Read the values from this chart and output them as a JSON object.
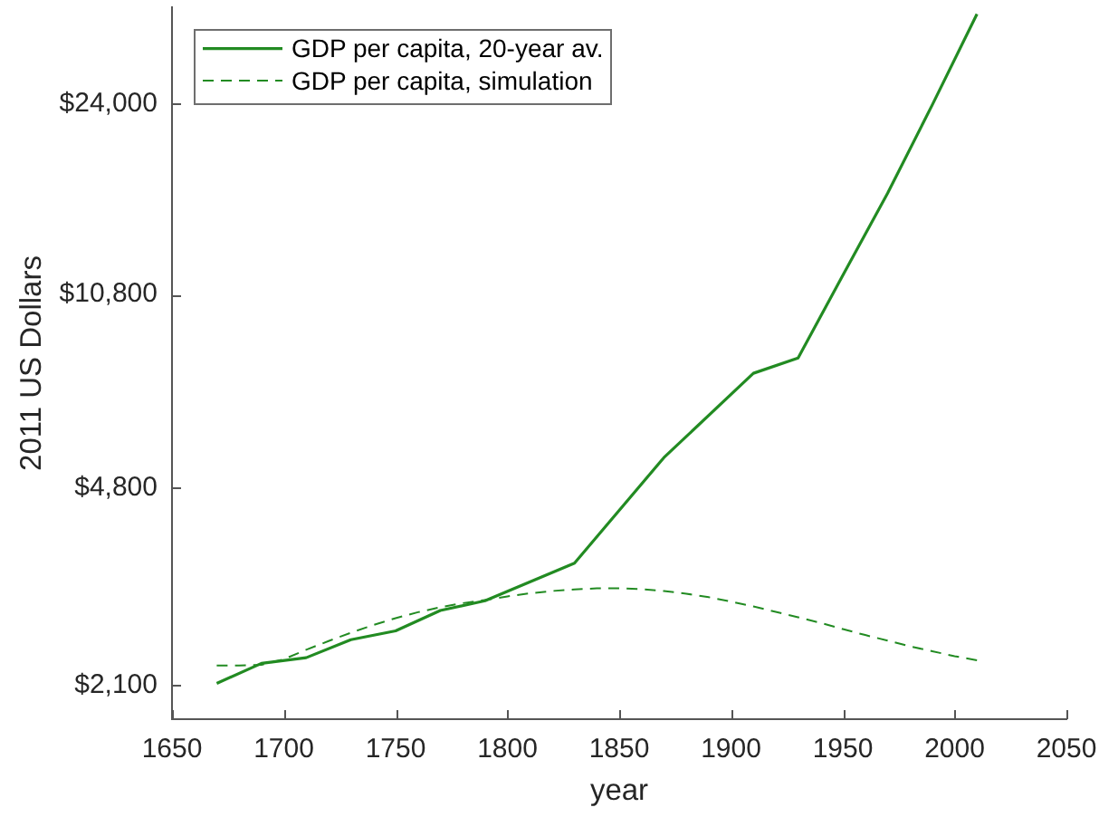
{
  "chart_data": {
    "type": "line",
    "xlabel": "year",
    "ylabel": "2011 US Dollars",
    "xlim": [
      1650,
      2050
    ],
    "xticks": [
      1650,
      1700,
      1750,
      1800,
      1850,
      1900,
      1950,
      2000,
      2050
    ],
    "log": "y",
    "ylim": [
      1820,
      36000
    ],
    "yticks": [
      {
        "value": 2100,
        "label": "$2,100"
      },
      {
        "value": 4800,
        "label": "$4,800"
      },
      {
        "value": 10800,
        "label": "$10,800"
      },
      {
        "value": 24000,
        "label": "$24,000"
      }
    ],
    "legend": "top left",
    "series": [
      {
        "name": "GDP per capita, 20-year av.",
        "color": "#228b22",
        "line_style": "solid",
        "x": [
          1670,
          1690,
          1710,
          1730,
          1750,
          1770,
          1790,
          1830,
          1870,
          1910,
          1930,
          1950,
          1970,
          1990,
          2010
        ],
        "values": [
          2115,
          2300,
          2355,
          2540,
          2635,
          2870,
          2990,
          3500,
          5450,
          7760,
          8270,
          11700,
          16500,
          23900,
          35000
        ]
      },
      {
        "name": "GDP per capita, simulation",
        "color": "#228b22",
        "line_style": "dashed",
        "x": [
          1670,
          1680,
          1690,
          1700,
          1710,
          1720,
          1730,
          1740,
          1750,
          1760,
          1770,
          1780,
          1790,
          1800,
          1810,
          1820,
          1830,
          1840,
          1850,
          1860,
          1870,
          1880,
          1890,
          1900,
          1910,
          1920,
          1930,
          1940,
          1950,
          1960,
          1970,
          1980,
          1990,
          2000,
          2010
        ],
        "values": [
          2280,
          2280,
          2285,
          2340,
          2435,
          2525,
          2615,
          2700,
          2780,
          2850,
          2910,
          2960,
          3000,
          3045,
          3085,
          3115,
          3135,
          3150,
          3150,
          3140,
          3115,
          3080,
          3035,
          2980,
          2920,
          2855,
          2790,
          2725,
          2655,
          2590,
          2530,
          2470,
          2420,
          2370,
          2330
        ]
      }
    ]
  }
}
